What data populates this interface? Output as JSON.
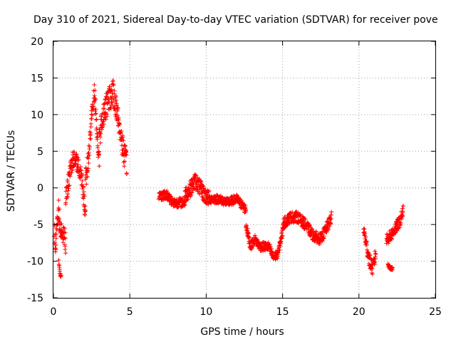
{
  "chart_data": {
    "type": "scatter",
    "title": "Day 310 of 2021, Sidereal Day-to-day VTEC variation (SDTVAR) for receiver pove",
    "xlabel": "GPS time / hours",
    "ylabel": "SDTVAR / TECUs",
    "xlim": [
      0,
      25
    ],
    "ylim": [
      -15,
      20
    ],
    "xticks": [
      0,
      5,
      10,
      15,
      20,
      25
    ],
    "yticks": [
      -15,
      -10,
      -5,
      0,
      5,
      10,
      15,
      20
    ],
    "grid": true,
    "marker": "+",
    "marker_color": "#ff0000",
    "segments": [
      [
        0.05,
        0.8,
        [
          [
            0.05,
            -6
          ],
          [
            0.15,
            -8
          ],
          [
            0.25,
            -5
          ],
          [
            0.35,
            -3
          ],
          [
            0.45,
            -6
          ],
          [
            0.55,
            -6
          ],
          [
            0.65,
            -6
          ],
          [
            0.75,
            -7
          ],
          [
            0.8,
            -8
          ]
        ],
        3.0
      ],
      [
        0.35,
        0.5,
        [
          [
            0.35,
            -10
          ],
          [
            0.4,
            -11
          ],
          [
            0.45,
            -12
          ]
        ],
        0.4
      ],
      [
        0.8,
        2.1,
        [
          [
            0.8,
            -1.5
          ],
          [
            1.0,
            1
          ],
          [
            1.2,
            3.5
          ],
          [
            1.4,
            4
          ],
          [
            1.6,
            3
          ],
          [
            1.8,
            2
          ],
          [
            2.0,
            -2
          ],
          [
            2.1,
            -3
          ]
        ],
        2.5
      ],
      [
        2.1,
        3.0,
        [
          [
            2.1,
            1
          ],
          [
            2.3,
            4
          ],
          [
            2.5,
            10
          ],
          [
            2.7,
            13
          ],
          [
            2.9,
            6
          ],
          [
            3.0,
            4
          ]
        ],
        3.0
      ],
      [
        3.0,
        4.8,
        [
          [
            3.0,
            7
          ],
          [
            3.3,
            10
          ],
          [
            3.6,
            12
          ],
          [
            3.9,
            13
          ],
          [
            4.2,
            10
          ],
          [
            4.5,
            6
          ],
          [
            4.8,
            3
          ]
        ],
        3.5
      ],
      [
        6.9,
        8.6,
        [
          [
            6.9,
            -1
          ],
          [
            7.2,
            -1
          ],
          [
            7.5,
            -1
          ],
          [
            7.8,
            -2
          ],
          [
            8.1,
            -2
          ],
          [
            8.4,
            -2
          ],
          [
            8.6,
            -2
          ]
        ],
        1.3
      ],
      [
        8.6,
        10.2,
        [
          [
            8.6,
            -1
          ],
          [
            9.0,
            0
          ],
          [
            9.3,
            1
          ],
          [
            9.6,
            0
          ],
          [
            9.9,
            -1
          ],
          [
            10.2,
            -1.5
          ]
        ],
        2.2
      ],
      [
        10.2,
        12.6,
        [
          [
            10.2,
            -1.5
          ],
          [
            10.8,
            -1.5
          ],
          [
            11.4,
            -2
          ],
          [
            12.0,
            -1.5
          ],
          [
            12.6,
            -3
          ]
        ],
        1.2
      ],
      [
        12.6,
        15.0,
        [
          [
            12.6,
            -5
          ],
          [
            12.9,
            -8
          ],
          [
            13.2,
            -7
          ],
          [
            13.5,
            -8
          ],
          [
            13.8,
            -8
          ],
          [
            14.1,
            -8
          ],
          [
            14.4,
            -9.5
          ],
          [
            14.7,
            -9
          ],
          [
            15.0,
            -6
          ]
        ],
        1.2
      ],
      [
        15.0,
        18.2,
        [
          [
            15.0,
            -5
          ],
          [
            15.5,
            -4
          ],
          [
            16.0,
            -4
          ],
          [
            16.5,
            -5
          ],
          [
            17.0,
            -6.5
          ],
          [
            17.5,
            -7
          ],
          [
            18.0,
            -5
          ],
          [
            18.2,
            -4
          ]
        ],
        1.5
      ],
      [
        20.3,
        21.1,
        [
          [
            20.3,
            -5.5
          ],
          [
            20.5,
            -8
          ],
          [
            20.7,
            -10
          ],
          [
            20.9,
            -11
          ],
          [
            21.1,
            -9
          ]
        ],
        2.0
      ],
      [
        21.8,
        22.9,
        [
          [
            21.8,
            -7
          ],
          [
            22.1,
            -6.5
          ],
          [
            22.4,
            -5.5
          ],
          [
            22.7,
            -4.5
          ],
          [
            22.9,
            -3
          ]
        ],
        1.6
      ],
      [
        21.9,
        22.2,
        [
          [
            21.9,
            -10.5
          ],
          [
            22.05,
            -11
          ],
          [
            22.2,
            -11
          ]
        ],
        0.4
      ]
    ]
  }
}
